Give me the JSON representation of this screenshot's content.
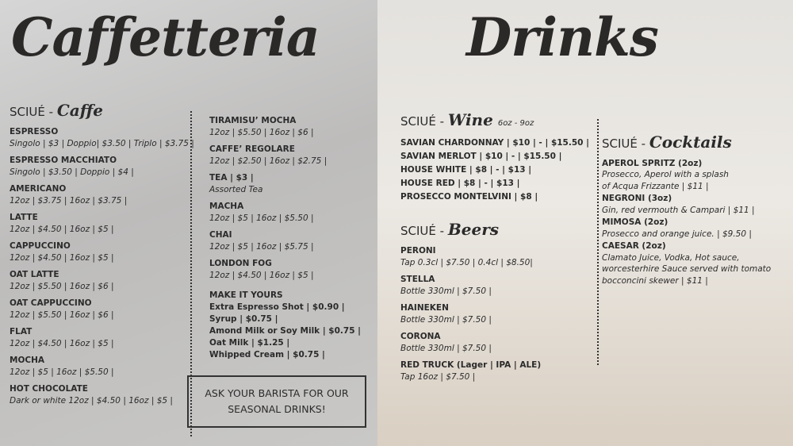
{
  "caffetteria": {
    "title": "Caffetteria",
    "columns": [
      {
        "prefix": "SCIUÉ -",
        "name": "Caffe",
        "items": [
          {
            "name": "ESPRESSO",
            "lines": [
              "Singolo | $3 | Doppio| $3.50 | Triplo | $3.75 |"
            ]
          },
          {
            "name": "ESPRESSO MACCHIATO",
            "lines": [
              "Singolo | $3.50 | Doppio | $4 |"
            ]
          },
          {
            "name": "AMERICANO",
            "lines": [
              "12oz | $3.75 | 16oz | $3.75 |"
            ]
          },
          {
            "name": "LATTE",
            "lines": [
              "12oz | $4.50 | 16oz | $5 |"
            ]
          },
          {
            "name": "CAPPUCCINO",
            "lines": [
              "12oz | $4.50 | 16oz | $5 |"
            ]
          },
          {
            "name": "OAT LATTE",
            "lines": [
              "12oz | $5.50 | 16oz | $6 |"
            ]
          },
          {
            "name": "OAT CAPPUCCINO",
            "lines": [
              "12oz | $5.50 | 16oz | $6 |"
            ]
          },
          {
            "name": "FLAT",
            "lines": [
              "12oz | $4.50 | 16oz | $5 |"
            ]
          },
          {
            "name": "MOCHA",
            "lines": [
              "12oz | $5 | 16oz | $5.50 |"
            ]
          },
          {
            "name": "HOT CHOCOLATE",
            "lines": [
              "Dark or white 12oz | $4.50 | 16oz | $5 |"
            ]
          }
        ]
      },
      {
        "items": [
          {
            "name": "TIRAMISU’ MOCHA",
            "lines": [
              "12oz | $5.50 | 16oz | $6 |"
            ]
          },
          {
            "name": "CAFFE’ REGOLARE",
            "lines": [
              "12oz | $2.50 | 16oz | $2.75 |"
            ]
          },
          {
            "name": "TEA | $3 |",
            "lines": [
              "Assorted Tea"
            ]
          },
          {
            "name": "MACHA",
            "lines": [
              "12oz | $5 | 16oz | $5.50 |"
            ]
          },
          {
            "name": "CHAI",
            "lines": [
              "12oz | $5 | 16oz | $5.75 |"
            ]
          },
          {
            "name": "LONDON FOG",
            "lines": [
              "12oz | $4.50 | 16oz | $5 |"
            ]
          }
        ],
        "extras": {
          "name": "MAKE IT YOURS",
          "lines": [
            "Extra Espresso Shot | $0.90 |",
            "Syrup | $0.75 |",
            "Amond Milk or Soy Milk | $0.75 |",
            "Oat Milk | $1.25 |",
            "Whipped Cream | $0.75 |"
          ]
        }
      }
    ],
    "notice": "ASK YOUR BARISTA FOR OUR SEASONAL DRINKS!"
  },
  "drinks": {
    "title": "Drinks",
    "sections": [
      {
        "prefix": "SCIUÉ -",
        "name": "Wine",
        "note": "6oz - 9oz",
        "items": [
          {
            "name": "SAVIAN CHARDONNAY | $10 | - | $15.50 |"
          },
          {
            "name": "SAVIAN MERLOT | $10 | - | $15.50 |"
          },
          {
            "name": "HOUSE WHITE | $8 | - | $13 |"
          },
          {
            "name": "HOUSE RED | $8 | - | $13 |"
          },
          {
            "name": "PROSECCO MONTELVINI | $8 |"
          }
        ]
      },
      {
        "prefix": "SCIUÉ -",
        "name": "Beers",
        "items": [
          {
            "name": "PERONI",
            "lines": [
              "Tap 0.3cl | $7.50 | 0.4cl | $8.50|"
            ]
          },
          {
            "name": "STELLA",
            "lines": [
              "Bottle 330ml | $7.50 |"
            ]
          },
          {
            "name": "HAINEKEN",
            "lines": [
              "Bottle 330ml | $7.50 |"
            ]
          },
          {
            "name": "CORONA",
            "lines": [
              "Bottle 330ml | $7.50 |"
            ]
          },
          {
            "name": "RED TRUCK (Lager | IPA | ALE)",
            "lines": [
              "Tap 16oz | $7.50 |"
            ]
          }
        ]
      },
      {
        "prefix": "SCIUÉ -",
        "name": "Cocktails",
        "items": [
          {
            "name": "APEROL SPRITZ (2oz)",
            "lines": [
              "Prosecco, Aperol with a splash",
              "of Acqua Frizzante | $11 |"
            ]
          },
          {
            "name": "NEGRONI (3oz)",
            "lines": [
              "Gin, red vermouth & Campari | $11 |"
            ]
          },
          {
            "name": "MIMOSA (2oz)",
            "lines": [
              "Prosecco and orange juice. | $9.50 |"
            ]
          },
          {
            "name": "CAESAR (2oz)",
            "lines": [
              "Clamato Juice, Vodka, Hot sauce,",
              "worcesterhire Sauce served with tomato",
              "bocconcini skewer | $11 |"
            ]
          }
        ]
      }
    ]
  }
}
